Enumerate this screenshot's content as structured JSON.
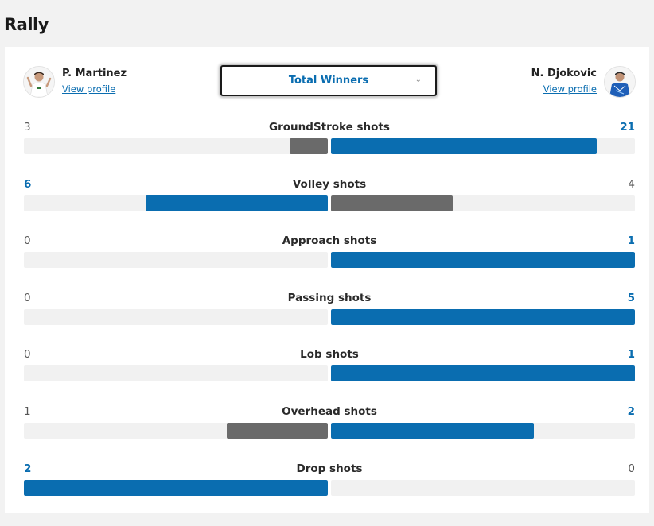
{
  "section": {
    "title": "Rally"
  },
  "players": {
    "left": {
      "name": "P. Martinez",
      "link": "View profile"
    },
    "right": {
      "name": "N. Djokovic",
      "link": "View profile"
    }
  },
  "dropdown": {
    "selected": "Total Winners",
    "icon": "chevron-down-icon"
  },
  "colors": {
    "leader": "#0a6db0",
    "trailer": "#6a6a6a",
    "track": "#f1f1f1"
  },
  "stats": [
    {
      "label": "GroundStroke shots",
      "left": "3",
      "right": "21"
    },
    {
      "label": "Volley shots",
      "left": "6",
      "right": "4"
    },
    {
      "label": "Approach shots",
      "left": "0",
      "right": "1"
    },
    {
      "label": "Passing shots",
      "left": "0",
      "right": "5"
    },
    {
      "label": "Lob shots",
      "left": "0",
      "right": "1"
    },
    {
      "label": "Overhead shots",
      "left": "1",
      "right": "2"
    },
    {
      "label": "Drop shots",
      "left": "2",
      "right": "0"
    }
  ]
}
